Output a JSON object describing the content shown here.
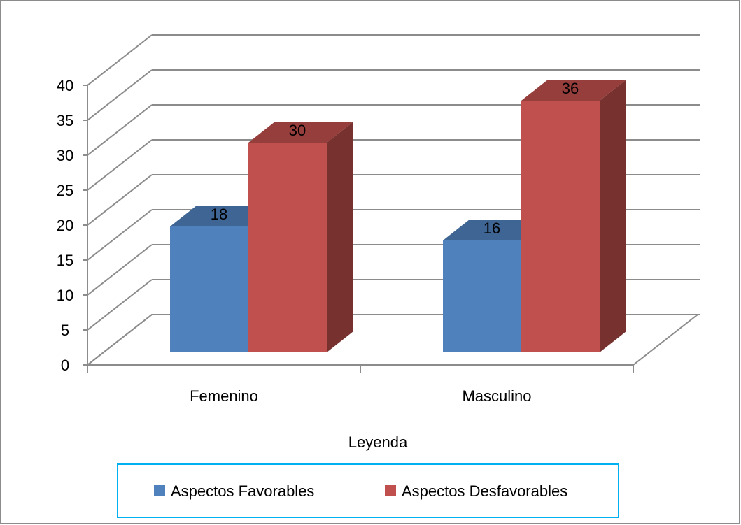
{
  "chart_data": {
    "type": "bar",
    "categories": [
      "Femenino",
      "Masculino"
    ],
    "series": [
      {
        "name": "Aspectos Favorables",
        "values": [
          18,
          16
        ],
        "color": "#4F81BD"
      },
      {
        "name": "Aspectos Desfavorables",
        "values": [
          30,
          36
        ],
        "color": "#C0504D"
      }
    ],
    "xlabel": "Leyenda",
    "ylabel": "",
    "ylim": [
      0,
      40
    ],
    "yticks": [
      "0",
      "5",
      "10",
      "15",
      "20",
      "25",
      "30",
      "35",
      "40"
    ],
    "data_labels": true,
    "grid": true,
    "legend_position": "bottom",
    "style": "3d-column"
  }
}
